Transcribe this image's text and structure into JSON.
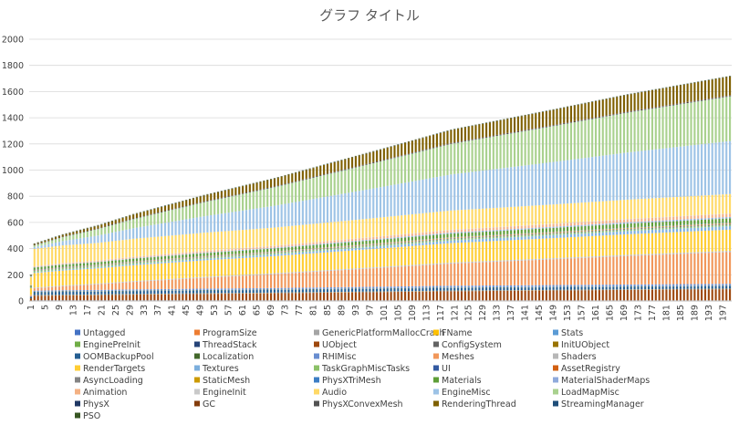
{
  "chart_data": {
    "type": "bar",
    "stacked": true,
    "title": "グラフ タイトル",
    "xlabel": "",
    "ylabel": "",
    "ylim": [
      0,
      2000
    ],
    "yticks": [
      0,
      200,
      400,
      600,
      800,
      1000,
      1200,
      1400,
      1600,
      1800,
      2000
    ],
    "x": {
      "start": 1,
      "end": 199,
      "tick_start": 1,
      "tick_step": 4
    },
    "x_tick_labels": [
      "1",
      "5",
      "9",
      "13",
      "17",
      "21",
      "25",
      "29",
      "33",
      "37",
      "41",
      "45",
      "49",
      "53",
      "57",
      "61",
      "65",
      "69",
      "73",
      "77",
      "81",
      "85",
      "89",
      "93",
      "97",
      "101",
      "105",
      "109",
      "113",
      "117",
      "121",
      "125",
      "129",
      "133",
      "137",
      "141",
      "145",
      "149",
      "153",
      "157",
      "161",
      "165",
      "169",
      "173",
      "177",
      "181",
      "185",
      "189",
      "193",
      "197"
    ],
    "approx_total_by_x": [
      [
        1,
        200
      ],
      [
        2,
        440
      ],
      [
        10,
        510
      ],
      [
        20,
        580
      ],
      [
        30,
        665
      ],
      [
        50,
        810
      ],
      [
        70,
        940
      ],
      [
        100,
        1160
      ],
      [
        120,
        1310
      ],
      [
        150,
        1470
      ],
      [
        170,
        1580
      ],
      [
        199,
        1720
      ]
    ],
    "legend_position": "bottom",
    "grid": true,
    "series": [
      {
        "name": "Untagged",
        "color": "#4472c4",
        "start": 0,
        "end": 0
      },
      {
        "name": "ProgramSize",
        "color": "#ed7d31",
        "start": 0,
        "end": 0
      },
      {
        "name": "GenericPlatformMallocCrash",
        "color": "#a5a5a5",
        "start": 0,
        "end": 0
      },
      {
        "name": "FName",
        "color": "#ffc000",
        "start": 0,
        "end": 0
      },
      {
        "name": "Stats",
        "color": "#5b9bd5",
        "start": 0,
        "end": 0
      },
      {
        "name": "EnginePreInit",
        "color": "#70ad47",
        "start": 3,
        "end": 3
      },
      {
        "name": "ThreadStack",
        "color": "#264478",
        "start": 2,
        "end": 2
      },
      {
        "name": "UObject",
        "color": "#9e480e",
        "start": 30,
        "end": 95
      },
      {
        "name": "ConfigSystem",
        "color": "#636363",
        "start": 3,
        "end": 3
      },
      {
        "name": "InitUObject",
        "color": "#997300",
        "start": 2,
        "end": 2
      },
      {
        "name": "OOMBackupPool",
        "color": "#255e91",
        "start": 20,
        "end": 20
      },
      {
        "name": "Localization",
        "color": "#43682b",
        "start": 3,
        "end": 3
      },
      {
        "name": "RHIMisc",
        "color": "#698ed0",
        "start": 8,
        "end": 18
      },
      {
        "name": "Meshes",
        "color": "#f1975a",
        "start": 15,
        "end": 270
      },
      {
        "name": "Shaders",
        "color": "#b7b7b7",
        "start": 5,
        "end": 10
      },
      {
        "name": "RenderTargets",
        "color": "#ffcd33",
        "start": 100,
        "end": 180
      },
      {
        "name": "Textures",
        "color": "#7cafdd",
        "start": 5,
        "end": 30
      },
      {
        "name": "TaskGraphMiscTasks",
        "color": "#8cc168",
        "start": 10,
        "end": 12
      },
      {
        "name": "UI",
        "color": "#335aa1",
        "start": 2,
        "end": 4
      },
      {
        "name": "AssetRegistry",
        "color": "#d26012",
        "start": 2,
        "end": 3
      },
      {
        "name": "AsyncLoading",
        "color": "#848484",
        "start": 2,
        "end": 2
      },
      {
        "name": "StaticMesh",
        "color": "#cc9a00",
        "start": 2,
        "end": 6
      },
      {
        "name": "PhysXTriMesh",
        "color": "#3c7dc4",
        "start": 0,
        "end": 4
      },
      {
        "name": "Materials",
        "color": "#5e9e37",
        "start": 15,
        "end": 35
      },
      {
        "name": "MaterialShaderMaps",
        "color": "#8faadc",
        "start": 2,
        "end": 12
      },
      {
        "name": "Animation",
        "color": "#f4b183",
        "start": 5,
        "end": 28
      },
      {
        "name": "EngineInit",
        "color": "#c9c9c9",
        "start": 2,
        "end": 2
      },
      {
        "name": "Audio",
        "color": "#ffd966",
        "start": 120,
        "end": 165
      },
      {
        "name": "EngineMisc",
        "color": "#9dc3e6",
        "start": 10,
        "end": 450
      },
      {
        "name": "LoadMapMisc",
        "color": "#a9d18e",
        "start": 10,
        "end": 380
      },
      {
        "name": "PhysX",
        "color": "#203864",
        "start": 2,
        "end": 4
      },
      {
        "name": "GC",
        "color": "#843c0c",
        "start": 2,
        "end": 4
      },
      {
        "name": "PhysXConvexMesh",
        "color": "#525252",
        "start": 0,
        "end": 2
      },
      {
        "name": "RenderingThread",
        "color": "#7f6000",
        "start": 5,
        "end": 160
      },
      {
        "name": "StreamingManager",
        "color": "#1f4e79",
        "start": 2,
        "end": 2
      },
      {
        "name": "PSO",
        "color": "#375623",
        "start": 2,
        "end": 2
      }
    ]
  }
}
